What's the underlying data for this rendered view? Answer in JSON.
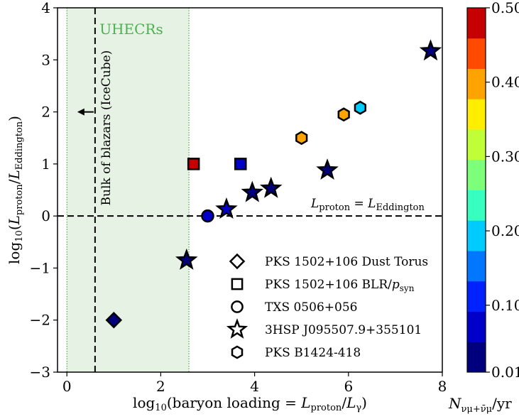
{
  "chart_data": {
    "type": "scatter",
    "xlabel": "log10(baryon loading = Lproton/Lγ)",
    "ylabel": "log10(Lproton/LEddington)",
    "xlim": [
      -0.2,
      8
    ],
    "ylim": [
      -3,
      4
    ],
    "xticks": [
      "0",
      "2",
      "4",
      "6",
      "8"
    ],
    "yticks": [
      "−3",
      "−2",
      "−1",
      "0",
      "1",
      "2",
      "3",
      "4"
    ],
    "uhecr_region": {
      "x_from": 0,
      "x_to": 2.6,
      "label": "UHECRs"
    },
    "blazar_bulk": {
      "x": 0.6,
      "label": "Bulk of blazars (IceCube)"
    },
    "eddington_line": {
      "y": 0,
      "label": "Lproton = LEddington"
    },
    "colorbar": {
      "label": "Nνμ+ν̄μ/yr",
      "ticks": [
        "0.01",
        "0.10",
        "0.20",
        "0.30",
        "0.40",
        "0.50"
      ],
      "min": 0.01,
      "max": 0.5,
      "colors": [
        "#00007f",
        "#0000c8",
        "#0022ff",
        "#0077ff",
        "#00ccff",
        "#37ffc0",
        "#7dff7a",
        "#c0ff37",
        "#ffee00",
        "#ffa300",
        "#ff4a00",
        "#c60000"
      ]
    },
    "series": [
      {
        "name": "PKS 1502+106 Dust Torus",
        "marker": "diamond",
        "points": [
          {
            "x": 1.0,
            "y": -2.0,
            "c": 0.03
          }
        ]
      },
      {
        "name": "PKS 1502+106 BLR/psyn",
        "marker": "square",
        "points": [
          {
            "x": 2.7,
            "y": 1.0,
            "c": 0.49
          },
          {
            "x": 3.7,
            "y": 1.0,
            "c": 0.07
          }
        ]
      },
      {
        "name": "TXS 0506+056",
        "marker": "circle",
        "points": [
          {
            "x": 3.0,
            "y": 0.0,
            "c": 0.07
          }
        ]
      },
      {
        "name": "3HSP J095507.9+355101",
        "marker": "star",
        "points": [
          {
            "x": 2.55,
            "y": -0.85,
            "c": 0.05
          },
          {
            "x": 3.4,
            "y": 0.13,
            "c": 0.06
          },
          {
            "x": 3.95,
            "y": 0.45,
            "c": 0.05
          },
          {
            "x": 4.35,
            "y": 0.53,
            "c": 0.05
          },
          {
            "x": 5.55,
            "y": 0.88,
            "c": 0.05
          },
          {
            "x": 7.75,
            "y": 3.17,
            "c": 0.05
          }
        ]
      },
      {
        "name": "PKS B1424-418",
        "marker": "hexagon",
        "points": [
          {
            "x": 5.0,
            "y": 1.5,
            "c": 0.38
          },
          {
            "x": 5.9,
            "y": 1.95,
            "c": 0.38
          },
          {
            "x": 6.25,
            "y": 2.08,
            "c": 0.21
          }
        ]
      }
    ]
  }
}
